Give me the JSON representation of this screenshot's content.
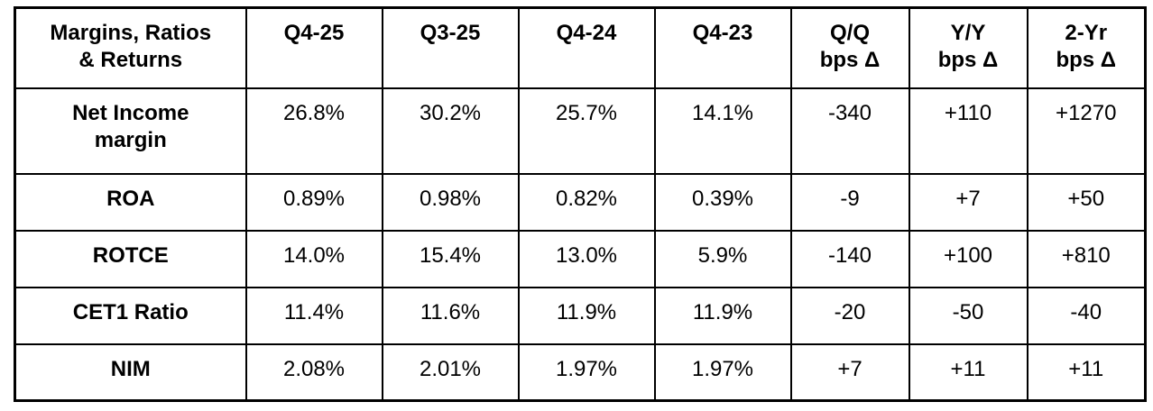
{
  "chart_data": {
    "type": "table",
    "title": "Margins, Ratios & Returns",
    "columns": [
      "Margins, Ratios\n& Returns",
      "Q4-25",
      "Q3-25",
      "Q4-24",
      "Q4-23",
      "Q/Q\nbps Δ",
      "Y/Y\nbps Δ",
      "2-Yr\nbps Δ"
    ],
    "rows": [
      {
        "label": "Net Income\nmargin",
        "values": [
          "26.8%",
          "30.2%",
          "25.7%",
          "14.1%",
          "-340",
          "+110",
          "+1270"
        ]
      },
      {
        "label": "ROA",
        "values": [
          "0.89%",
          "0.98%",
          "0.82%",
          "0.39%",
          "-9",
          "+7",
          "+50"
        ]
      },
      {
        "label": "ROTCE",
        "values": [
          "14.0%",
          "15.4%",
          "13.0%",
          "5.9%",
          "-140",
          "+100",
          "+810"
        ]
      },
      {
        "label": "CET1 Ratio",
        "values": [
          "11.4%",
          "11.6%",
          "11.9%",
          "11.9%",
          "-20",
          "-50",
          "-40"
        ]
      },
      {
        "label": "NIM",
        "values": [
          "2.08%",
          "2.01%",
          "1.97%",
          "1.97%",
          "+7",
          "+11",
          "+11"
        ]
      }
    ],
    "colors": {
      "border": "#000000",
      "text": "#000000",
      "background": "#ffffff"
    },
    "layout": {
      "grid": "full-borders",
      "header_style": "bold",
      "row_label_style": "bold"
    }
  }
}
